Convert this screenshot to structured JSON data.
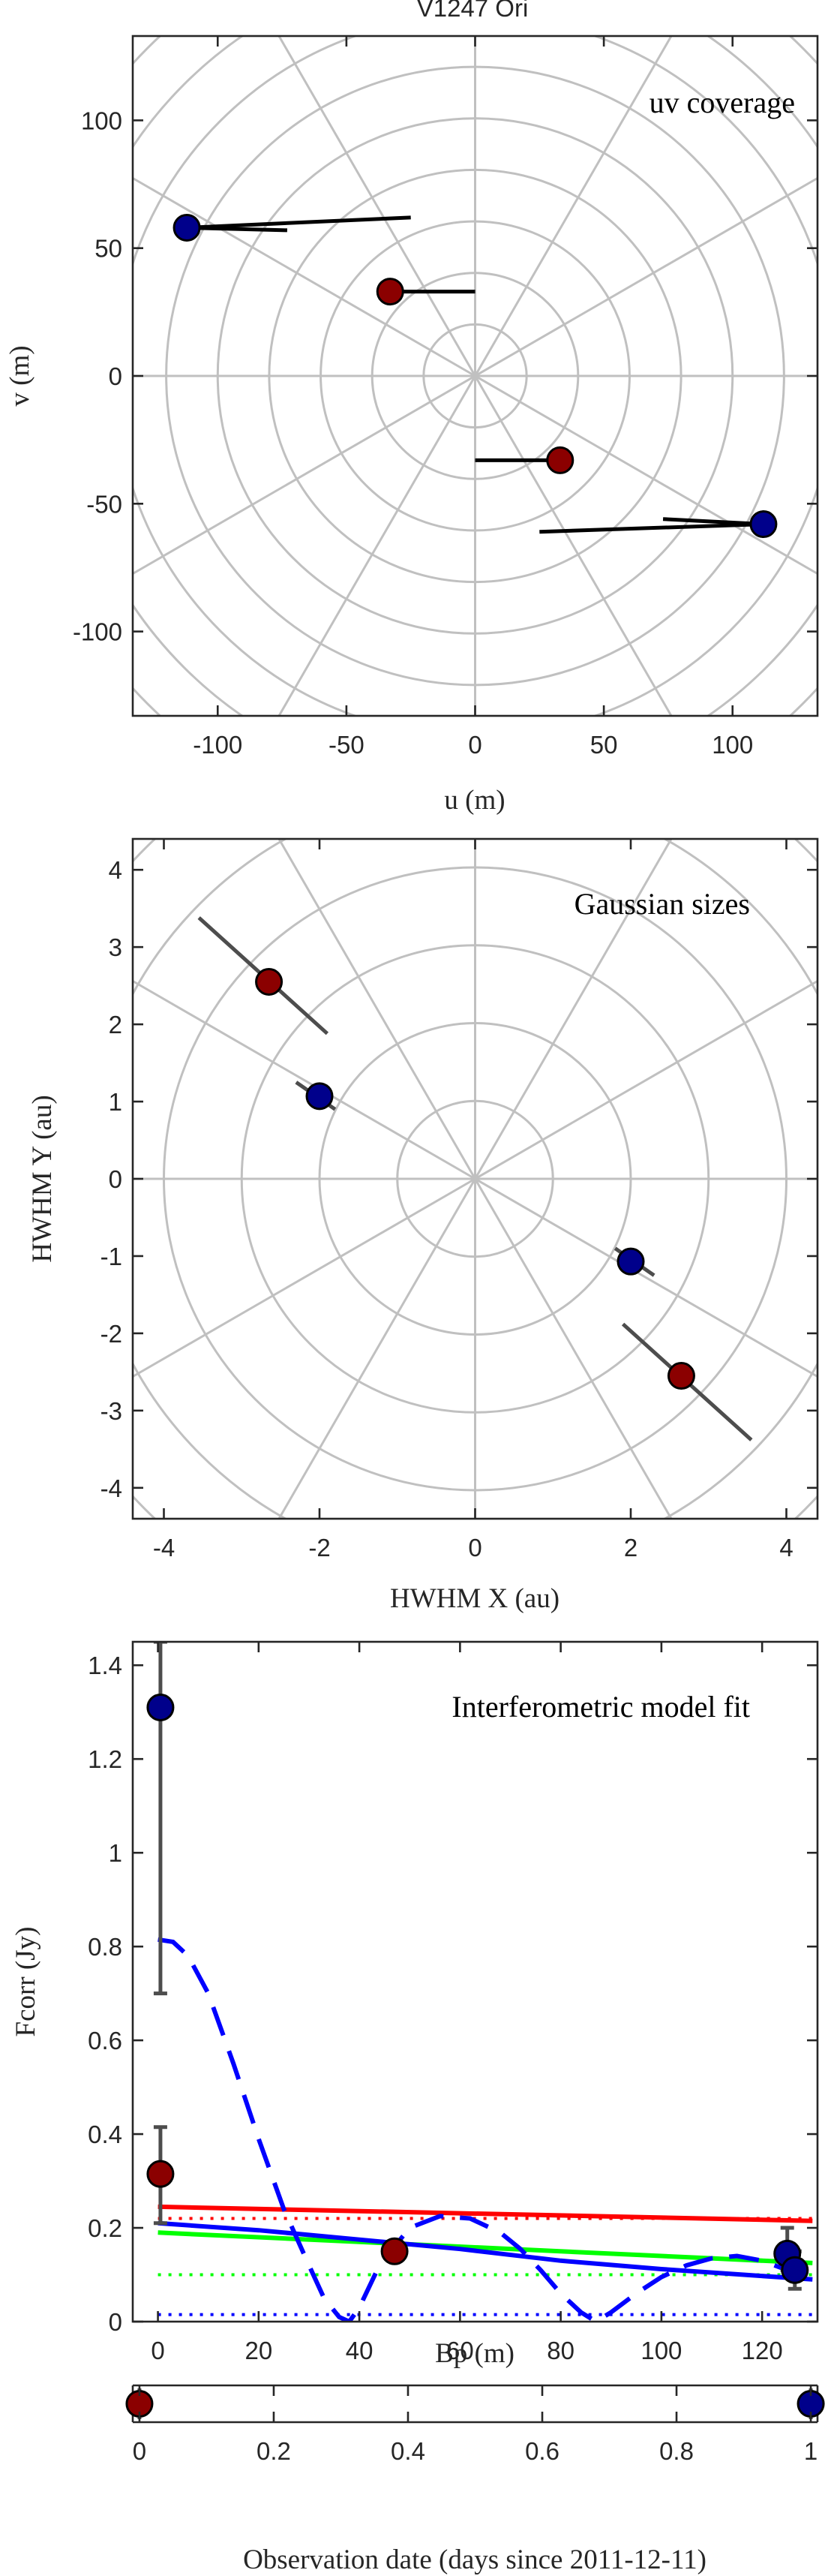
{
  "title": "V1247 Ori",
  "colors": {
    "red_marker": "#8b0000",
    "blue_marker": "#00008b",
    "grid": "#c0c0c0",
    "model_red": "#ff0000",
    "model_blue": "#0000ff",
    "model_green": "#00ff00"
  },
  "chart_data": [
    {
      "type": "scatter",
      "panel": "uv",
      "title": "uv coverage",
      "xlabel": "u (m)",
      "ylabel": "v (m)",
      "xlim": [
        -133,
        133
      ],
      "ylim": [
        -133,
        133
      ],
      "xticks": [
        "-100",
        "-50",
        "0",
        "50",
        "100"
      ],
      "yticks": [
        "-100",
        "-50",
        "0",
        "50",
        "100"
      ],
      "grid": "polar",
      "series": [
        {
          "color": "red",
          "points": [
            {
              "x": -33,
              "y": 33
            },
            {
              "x": 33,
              "y": -33
            }
          ]
        },
        {
          "color": "blue",
          "points": [
            {
              "x": -112,
              "y": 58
            },
            {
              "x": 112,
              "y": -58
            }
          ]
        }
      ],
      "tracks": [
        {
          "x1": -33,
          "y1": 33,
          "x2": 0,
          "y2": 33
        },
        {
          "x1": 0,
          "y1": -33,
          "x2": 33,
          "y2": -33
        },
        {
          "x1": -112,
          "y1": 58,
          "x2": -25,
          "y2": 62
        },
        {
          "x1": -112,
          "y1": 58,
          "x2": -73,
          "y2": 57
        },
        {
          "x1": 25,
          "y1": -61,
          "x2": 112,
          "y2": -58
        },
        {
          "x1": 73,
          "y1": -56,
          "x2": 112,
          "y2": -58
        }
      ]
    },
    {
      "type": "scatter",
      "panel": "gaussian",
      "title": "Gaussian sizes",
      "xlabel": "HWHM X (au)",
      "ylabel": "HWHM Y (au)",
      "xlim": [
        -4.4,
        4.4
      ],
      "ylim": [
        -4.4,
        4.4
      ],
      "xticks": [
        "-4",
        "-2",
        "0",
        "2",
        "4"
      ],
      "yticks": [
        "-4",
        "-3",
        "-2",
        "-1",
        "0",
        "1",
        "2",
        "3",
        "4"
      ],
      "grid": "polar",
      "series": [
        {
          "color": "red",
          "points": [
            {
              "x": -2.65,
              "y": 2.55
            },
            {
              "x": 2.65,
              "y": -2.55
            }
          ]
        },
        {
          "color": "blue",
          "points": [
            {
              "x": -2.0,
              "y": 1.07
            },
            {
              "x": 2.0,
              "y": -1.07
            }
          ]
        }
      ],
      "errorbars": [
        {
          "x1": -3.55,
          "y1": 3.38,
          "x2": -1.9,
          "y2": 1.88
        },
        {
          "x1": 3.55,
          "y1": -3.38,
          "x2": 1.9,
          "y2": -1.88
        },
        {
          "x1": -2.3,
          "y1": 1.25,
          "x2": -1.8,
          "y2": 0.9
        },
        {
          "x1": 2.3,
          "y1": -1.25,
          "x2": 1.8,
          "y2": -0.9
        }
      ]
    },
    {
      "type": "line",
      "panel": "fit",
      "title": "Interferometric model fit",
      "xlabel": "Bp (m)",
      "ylabel": "Fcorr (Jy)",
      "xlim": [
        -5,
        131
      ],
      "ylim": [
        0,
        1.45
      ],
      "xticks": [
        "0",
        "20",
        "40",
        "60",
        "80",
        "100",
        "120"
      ],
      "yticks": [
        "0",
        "0.2",
        "0.4",
        "0.6",
        "0.8",
        "1",
        "1.2",
        "1.4"
      ],
      "data_points": [
        {
          "color": "blue",
          "x": 0.5,
          "y": 1.31,
          "err": [
            0.7,
            1.45
          ]
        },
        {
          "color": "red",
          "x": 0.5,
          "y": 0.315,
          "err": [
            0.21,
            0.415
          ]
        },
        {
          "color": "red",
          "x": 47,
          "y": 0.15
        },
        {
          "color": "blue",
          "x": 125,
          "y": 0.145,
          "err": [
            0.11,
            0.2
          ]
        },
        {
          "color": "blue",
          "x": 126.5,
          "y": 0.11,
          "err": [
            0.07,
            0.15
          ]
        }
      ],
      "series": [
        {
          "color": "red",
          "style": "solid",
          "x": [
            0,
            130
          ],
          "y": [
            0.245,
            0.215
          ]
        },
        {
          "color": "red",
          "style": "dotted",
          "x": [
            0,
            130
          ],
          "y": [
            0.22,
            0.22
          ]
        },
        {
          "color": "green",
          "style": "solid",
          "x": [
            0,
            130
          ],
          "y": [
            0.19,
            0.125
          ]
        },
        {
          "color": "green",
          "style": "dotted",
          "x": [
            0,
            130
          ],
          "y": [
            0.1,
            0.1
          ]
        },
        {
          "color": "blue",
          "style": "dotted",
          "x": [
            0,
            130
          ],
          "y": [
            0.015,
            0.015
          ]
        },
        {
          "color": "blue",
          "style": "solid",
          "x": [
            0,
            20,
            40,
            60,
            80,
            100,
            130
          ],
          "y": [
            0.21,
            0.195,
            0.175,
            0.155,
            0.13,
            0.112,
            0.09
          ]
        },
        {
          "color": "blue",
          "style": "dashed",
          "x": [
            0,
            3,
            6,
            10,
            15,
            20,
            25,
            30,
            33,
            36,
            38,
            40,
            44,
            50,
            56,
            62,
            68,
            72,
            76,
            80,
            84,
            87,
            90,
            95,
            100,
            105,
            110,
            115,
            120,
            125,
            130
          ],
          "y": [
            0.815,
            0.81,
            0.78,
            0.7,
            0.55,
            0.39,
            0.24,
            0.12,
            0.05,
            0.01,
            0.0,
            0.03,
            0.12,
            0.2,
            0.225,
            0.22,
            0.19,
            0.155,
            0.11,
            0.06,
            0.02,
            0.0,
            0.02,
            0.06,
            0.095,
            0.12,
            0.135,
            0.14,
            0.13,
            0.11,
            0.09
          ]
        }
      ]
    },
    {
      "type": "scatter",
      "panel": "dates",
      "xlabel": "Observation date (days since 2011-12-11)",
      "xlim": [
        -0.01,
        1.01
      ],
      "xticks": [
        "0",
        "0.2",
        "0.4",
        "0.6",
        "0.8",
        "1"
      ],
      "series": [
        {
          "color": "red",
          "points": [
            {
              "x": 0
            }
          ]
        },
        {
          "color": "blue",
          "points": [
            {
              "x": 1
            }
          ]
        }
      ]
    }
  ]
}
